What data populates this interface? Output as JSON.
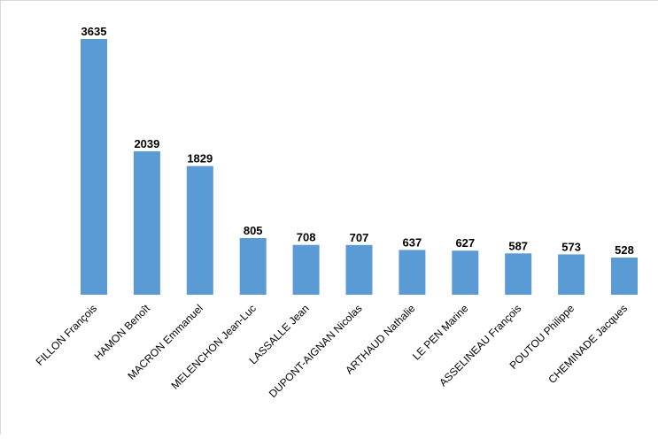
{
  "chart_data": {
    "type": "bar",
    "title": "",
    "xlabel": "",
    "ylabel": "",
    "categories": [
      "FILLON François",
      "HAMON Benoît",
      "MACRON Emmanuel",
      "MELENCHON Jean-Luc",
      "LASSALLE Jean",
      "DUPONT-AIGNAN Nicolas",
      "ARTHAUD Nathalie",
      "LE PEN Marine",
      "ASSELINEAU François",
      "POUTOU Philippe",
      "CHEMINADE Jacques"
    ],
    "values": [
      3635,
      2039,
      1829,
      805,
      708,
      707,
      637,
      627,
      587,
      573,
      528
    ],
    "ylim": [
      0,
      3635
    ],
    "grid": false,
    "legend": "none",
    "colors": {
      "bar": "#5b9bd5",
      "label": "#000000",
      "tick": "#000000"
    }
  }
}
